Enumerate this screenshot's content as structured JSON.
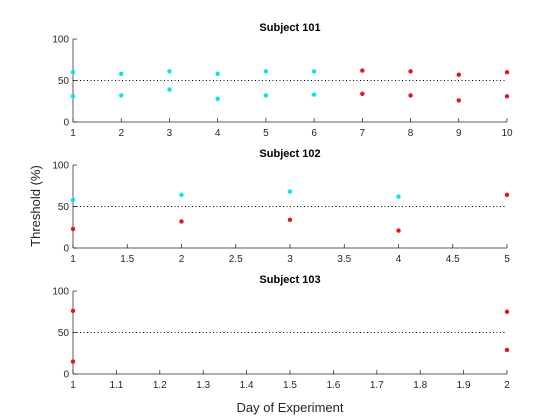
{
  "figure": {
    "ylabel": "Threshold (%)",
    "xlabel": "Day of Experiment"
  },
  "colors": {
    "cyan": "#00e5ee",
    "red": "#e3151b",
    "axis": "#262626"
  },
  "chart_data": [
    {
      "type": "scatter",
      "title": "Subject 101",
      "xlim": [
        1,
        10
      ],
      "ylim": [
        0,
        100
      ],
      "xticks": [
        1,
        2,
        3,
        4,
        5,
        6,
        7,
        8,
        9,
        10
      ],
      "xtick_labels": [
        "1",
        "2",
        "3",
        "4",
        "5",
        "6",
        "7",
        "8",
        "9",
        "10"
      ],
      "yticks": [
        0,
        50,
        100
      ],
      "ytick_labels": [
        "0",
        "50",
        "100"
      ],
      "reference_line": 50,
      "series": [
        {
          "color": "cyan",
          "points": [
            [
              1,
              60
            ],
            [
              1,
              31
            ],
            [
              2,
              58
            ],
            [
              2,
              32
            ],
            [
              3,
              61
            ],
            [
              3,
              39
            ],
            [
              4,
              58
            ],
            [
              4,
              28
            ],
            [
              5,
              61
            ],
            [
              5,
              32
            ],
            [
              6,
              61
            ],
            [
              6,
              33
            ]
          ]
        },
        {
          "color": "red",
          "points": [
            [
              7,
              62
            ],
            [
              7,
              34
            ],
            [
              8,
              61
            ],
            [
              8,
              32
            ],
            [
              9,
              57
            ],
            [
              9,
              26
            ],
            [
              10,
              60
            ],
            [
              10,
              31
            ]
          ]
        }
      ]
    },
    {
      "type": "scatter",
      "title": "Subject 102",
      "xlim": [
        1,
        5
      ],
      "ylim": [
        0,
        100
      ],
      "xticks": [
        1,
        1.5,
        2,
        2.5,
        3,
        3.5,
        4,
        4.5,
        5
      ],
      "xtick_labels": [
        "1",
        "1.5",
        "2",
        "2.5",
        "3",
        "3.5",
        "4",
        "4.5",
        "5"
      ],
      "yticks": [
        0,
        50,
        100
      ],
      "ytick_labels": [
        "0",
        "50",
        "100"
      ],
      "reference_line": 50,
      "series": [
        {
          "color": "cyan",
          "points": [
            [
              1,
              58
            ],
            [
              2,
              64
            ],
            [
              3,
              68
            ],
            [
              4,
              62
            ]
          ]
        },
        {
          "color": "red",
          "points": [
            [
              1,
              23
            ],
            [
              2,
              32
            ],
            [
              3,
              34
            ],
            [
              4,
              21
            ],
            [
              5,
              64
            ]
          ]
        }
      ]
    },
    {
      "type": "scatter",
      "title": "Subject 103",
      "xlim": [
        1,
        2
      ],
      "ylim": [
        0,
        100
      ],
      "xticks": [
        1,
        1.1,
        1.2,
        1.3,
        1.4,
        1.5,
        1.6,
        1.7,
        1.8,
        1.9,
        2
      ],
      "xtick_labels": [
        "1",
        "1.1",
        "1.2",
        "1.3",
        "1.4",
        "1.5",
        "1.6",
        "1.7",
        "1.8",
        "1.9",
        "2"
      ],
      "yticks": [
        0,
        50,
        100
      ],
      "ytick_labels": [
        "0",
        "50",
        "100"
      ],
      "reference_line": 50,
      "series": [
        {
          "color": "red",
          "points": [
            [
              1,
              76
            ],
            [
              1,
              15
            ],
            [
              2,
              75
            ],
            [
              2,
              29
            ]
          ]
        }
      ]
    }
  ]
}
